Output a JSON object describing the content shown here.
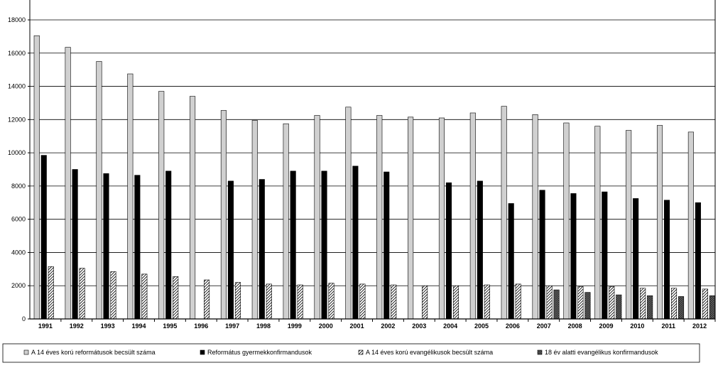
{
  "chart_data": {
    "type": "bar",
    "title": "",
    "xlabel": "",
    "ylabel": "",
    "ylim": [
      0,
      18000
    ],
    "yticks": [
      0,
      2000,
      4000,
      6000,
      8000,
      10000,
      12000,
      14000,
      16000,
      18000
    ],
    "grid": true,
    "legend_position": "bottom",
    "categories": [
      "1991",
      "1992",
      "1993",
      "1994",
      "1995",
      "1996",
      "1997",
      "1998",
      "1999",
      "2000",
      "2001",
      "2002",
      "2003",
      "2004",
      "2005",
      "2006",
      "2007",
      "2008",
      "2009",
      "2010",
      "2011",
      "2012"
    ],
    "series": [
      {
        "name": "A 14 éves korú reformátusok becsült száma",
        "color": "#d0d0d0",
        "pattern": "solid",
        "values": [
          17050,
          16350,
          15500,
          14750,
          13700,
          13400,
          12550,
          11950,
          11750,
          12250,
          12750,
          12250,
          12150,
          12100,
          12400,
          12800,
          12300,
          11800,
          11600,
          11350,
          11650,
          11250
        ]
      },
      {
        "name": "Református gyermekkonfirmandusok",
        "color": "#000000",
        "pattern": "solid",
        "values": [
          9850,
          9000,
          8750,
          8650,
          8900,
          null,
          8300,
          8400,
          8900,
          8900,
          9200,
          8850,
          null,
          8200,
          8300,
          6950,
          7750,
          7550,
          7650,
          7250,
          7150,
          7000
        ]
      },
      {
        "name": "A 14 éves korú evangélikusok becsült száma",
        "color": "#ffffff",
        "pattern": "hatch",
        "values": [
          3150,
          3050,
          2850,
          2700,
          2550,
          2350,
          2200,
          2100,
          2050,
          2150,
          2100,
          2050,
          2000,
          2000,
          2050,
          2100,
          2000,
          1950,
          1950,
          1850,
          1850,
          1800
        ]
      },
      {
        "name": "18 év alatti evangélikus konfirmandusok",
        "color": "#555555",
        "pattern": "crosshatch",
        "values": [
          null,
          null,
          null,
          null,
          null,
          null,
          null,
          null,
          null,
          null,
          null,
          null,
          null,
          null,
          null,
          null,
          1750,
          1600,
          1450,
          1400,
          1350,
          1400
        ]
      }
    ]
  }
}
